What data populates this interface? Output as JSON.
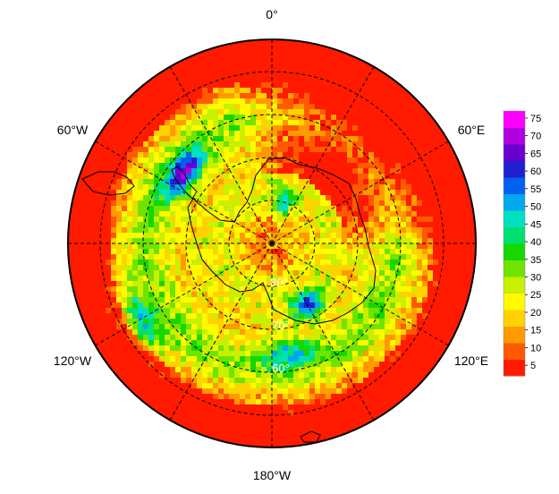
{
  "map": {
    "projection": "south-polar-stereographic",
    "longitude_labels": [
      {
        "id": "lon-0",
        "text": "0°"
      },
      {
        "id": "lon-60e",
        "text": "60°E"
      },
      {
        "id": "lon-120e",
        "text": "120°E"
      },
      {
        "id": "lon-180w",
        "text": "180°W"
      },
      {
        "id": "lon-120w",
        "text": "120°W"
      },
      {
        "id": "lon-60w",
        "text": "60°W"
      }
    ],
    "latitude_labels": [
      {
        "id": "lat-60",
        "text": "60°"
      },
      {
        "id": "lat-70",
        "text": "70°"
      },
      {
        "id": "lat-80",
        "text": "80°"
      }
    ],
    "colors": {
      "outline": "#000000",
      "land_outline": "#000000",
      "graticule": "#000000"
    }
  },
  "colorbar": {
    "ticks": [
      "5",
      "10",
      "15",
      "20",
      "25",
      "30",
      "35",
      "40",
      "45",
      "50",
      "55",
      "60",
      "65",
      "70",
      "75"
    ],
    "range": [
      2,
      77
    ],
    "palette": [
      "#ff1a00",
      "#ff5a00",
      "#ff9a00",
      "#ffd200",
      "#fffa00",
      "#c8f000",
      "#6ee400",
      "#14d800",
      "#00e070",
      "#00e0c0",
      "#00a8f0",
      "#0060f0",
      "#2020d0",
      "#6a00d0",
      "#b000e0",
      "#ff00ff"
    ]
  }
}
